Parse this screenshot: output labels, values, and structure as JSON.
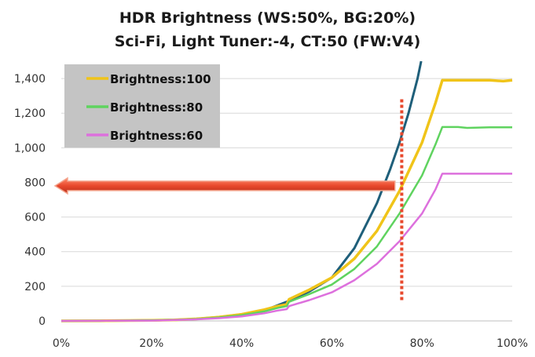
{
  "chart_data": {
    "type": "line",
    "title": "HDR Brightness (WS:50%, BG:20%)",
    "subtitle": "Sci-Fi, Light Tuner:-4, CT:50 (FW:V4)",
    "xlabel": "",
    "ylabel": "",
    "xlim": [
      0,
      100
    ],
    "ylim": [
      0,
      1500
    ],
    "x_ticks": [
      0,
      20,
      40,
      60,
      80,
      100
    ],
    "x_tick_labels": [
      "0%",
      "20%",
      "40%",
      "60%",
      "80%",
      "100%"
    ],
    "y_ticks": [
      0,
      200,
      400,
      600,
      800,
      1000,
      1200,
      1400
    ],
    "y_tick_labels": [
      "0",
      "200",
      "400",
      "600",
      "800",
      "1,000",
      "1,200",
      "1,400"
    ],
    "grid": "horizontal",
    "legend_position": "top-left",
    "series": [
      {
        "name": "",
        "color": "#1f5f7a",
        "x": [
          0,
          10,
          20,
          25,
          30,
          35,
          40,
          45,
          50,
          55,
          60,
          65,
          70,
          73,
          75,
          77,
          79,
          79.8
        ],
        "y": [
          0,
          1,
          3,
          6,
          12,
          22,
          38,
          60,
          110,
          170,
          250,
          420,
          680,
          880,
          1030,
          1200,
          1400,
          1500
        ]
      },
      {
        "name": "Brightness:100",
        "color": "#f0c419",
        "x": [
          0,
          10,
          20,
          25,
          30,
          35,
          40,
          45,
          48,
          50,
          50.5,
          55,
          60,
          65,
          70,
          75,
          80,
          83,
          84.5,
          90,
          95,
          98,
          100
        ],
        "y": [
          0,
          1,
          3,
          6,
          12,
          22,
          38,
          65,
          85,
          95,
          125,
          180,
          250,
          360,
          520,
          750,
          1030,
          1260,
          1390,
          1390,
          1390,
          1385,
          1390
        ]
      },
      {
        "name": "Brightness:80",
        "color": "#5fd35f",
        "x": [
          0,
          10,
          20,
          25,
          30,
          35,
          40,
          45,
          48,
          50,
          50.5,
          55,
          60,
          65,
          70,
          75,
          80,
          83,
          84.5,
          88,
          90,
          95,
          100
        ],
        "y": [
          0,
          1,
          3,
          6,
          11,
          20,
          33,
          55,
          75,
          85,
          110,
          155,
          210,
          300,
          430,
          620,
          840,
          1020,
          1120,
          1120,
          1115,
          1118,
          1118
        ]
      },
      {
        "name": "Brightness:60",
        "color": "#dd70dd",
        "x": [
          0,
          10,
          20,
          25,
          30,
          35,
          40,
          45,
          48,
          50,
          50.5,
          55,
          60,
          65,
          70,
          75,
          80,
          83,
          84.5,
          90,
          95,
          100
        ],
        "y": [
          0,
          1,
          2,
          5,
          9,
          16,
          26,
          44,
          60,
          68,
          85,
          120,
          165,
          235,
          330,
          460,
          620,
          760,
          850,
          850,
          850,
          850
        ]
      }
    ],
    "annotations": [
      {
        "type": "arrow",
        "color": "#e8482c",
        "direction": "left",
        "from_x": 74,
        "to_x": 0,
        "y": 780
      },
      {
        "type": "vertical-dashed-line",
        "color": "#e8482c",
        "x": 75.5,
        "y_from": 120,
        "y_to": 1280
      }
    ]
  }
}
